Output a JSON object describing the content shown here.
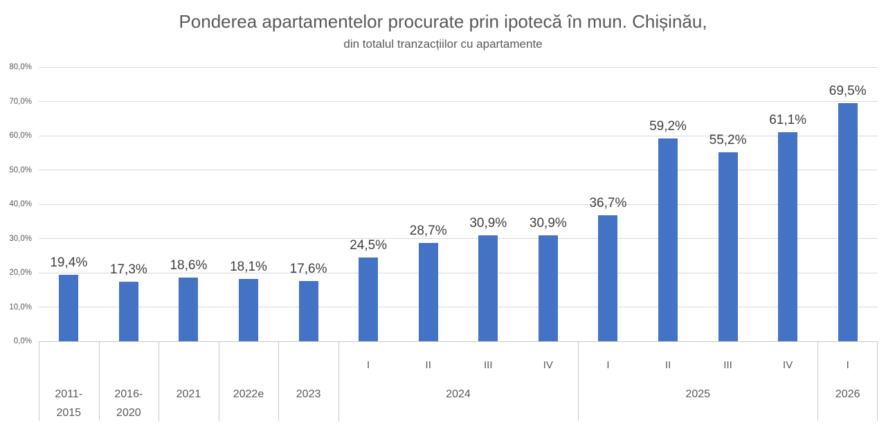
{
  "chart_data": {
    "type": "bar",
    "title": "Ponderea apartamentelor procurate prin ipotecă în mun. Chișinău,",
    "subtitle": "din totalul tranzacțiilor cu apartamente",
    "ylim": [
      0,
      80
    ],
    "grid": true,
    "legend": false,
    "y_ticks": [
      {
        "value": 0,
        "label": "0,0%"
      },
      {
        "value": 10,
        "label": "10,0%"
      },
      {
        "value": 20,
        "label": "20,0%"
      },
      {
        "value": 30,
        "label": "30,0%"
      },
      {
        "value": 40,
        "label": "40,0%"
      },
      {
        "value": 50,
        "label": "50,0%"
      },
      {
        "value": 60,
        "label": "60,0%"
      },
      {
        "value": 70,
        "label": "70,0%"
      },
      {
        "value": 80,
        "label": "80,0%"
      }
    ],
    "x_level1": [
      "",
      "",
      "",
      "",
      "",
      "I",
      "II",
      "III",
      "IV",
      "I",
      "II",
      "III",
      "IV",
      "I"
    ],
    "x_groups": [
      {
        "label": "2011-\n2015",
        "span": 1
      },
      {
        "label": "2016-\n2020",
        "span": 1
      },
      {
        "label": "2021",
        "span": 1
      },
      {
        "label": "2022e",
        "span": 1
      },
      {
        "label": "2023",
        "span": 1
      },
      {
        "label": "2024",
        "span": 4
      },
      {
        "label": "2025",
        "span": 4
      },
      {
        "label": "2026",
        "span": 1
      }
    ],
    "values": [
      19.4,
      17.3,
      18.6,
      18.1,
      17.6,
      24.5,
      28.7,
      30.9,
      30.9,
      36.7,
      59.2,
      55.2,
      61.1,
      69.5
    ],
    "value_labels": [
      "19,4%",
      "17,3%",
      "18,6%",
      "18,1%",
      "17,6%",
      "24,5%",
      "28,7%",
      "30,9%",
      "30,9%",
      "36,7%",
      "59,2%",
      "55,2%",
      "61,1%",
      "69,5%"
    ]
  },
  "colors": {
    "bar": "#4472C4",
    "gridline": "#D9D9D9",
    "axis_line": "#C9C9C9",
    "title_text": "#595959",
    "axis_text": "#595959",
    "value_label_text": "#404040"
  }
}
